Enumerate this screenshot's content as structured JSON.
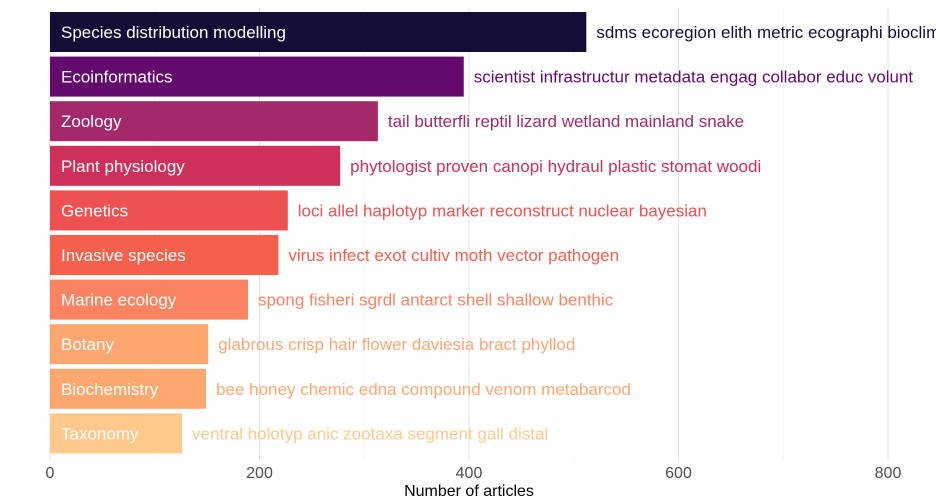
{
  "chart_data": {
    "type": "bar",
    "orientation": "horizontal",
    "xlabel": "Number of articles",
    "xlim": [
      0,
      840
    ],
    "xticks": [
      0,
      200,
      400,
      600,
      800
    ],
    "grid": true,
    "bars": [
      {
        "category": "Species distribution modelling",
        "value": 512,
        "keywords": "sdms ecoregion elith metric ecographi bioclim",
        "color": "#140d35"
      },
      {
        "category": "Ecoinformatics",
        "value": 395,
        "keywords": "scientist infrastructur metadata engag collabor educ volunt",
        "color": "#640a6e"
      },
      {
        "category": "Zoology",
        "value": 313,
        "keywords": "tail butterfli reptil lizard wetland mainland snake",
        "color": "#a4286a"
      },
      {
        "category": "Plant physiology",
        "value": 277,
        "keywords": "phytologist proven canopi hydraul plastic stomat woodi",
        "color": "#cf3059"
      },
      {
        "category": "Genetics",
        "value": 227,
        "keywords": "loci allel haplotyp marker reconstruct nuclear bayesian",
        "color": "#ee5151"
      },
      {
        "category": "Invasive species",
        "value": 218,
        "keywords": "virus infect exot cultiv moth vector pathogen",
        "color": "#f4604b"
      },
      {
        "category": "Marine ecology",
        "value": 189,
        "keywords": "spong fisheri sgrdl antarct shell shallow benthic",
        "color": "#fb8362"
      },
      {
        "category": "Botany",
        "value": 151,
        "keywords": "glabrous crisp hair flower daviesia bract phyllod",
        "color": "#fea66f"
      },
      {
        "category": "Biochemistry",
        "value": 149,
        "keywords": "bee honey chemic edna compound venom metabarcod",
        "color": "#fea86f"
      },
      {
        "category": "Taxonomy",
        "value": 126,
        "keywords": "ventral holotyp anic zootaxa segment gall distal",
        "color": "#fec98a"
      }
    ]
  }
}
